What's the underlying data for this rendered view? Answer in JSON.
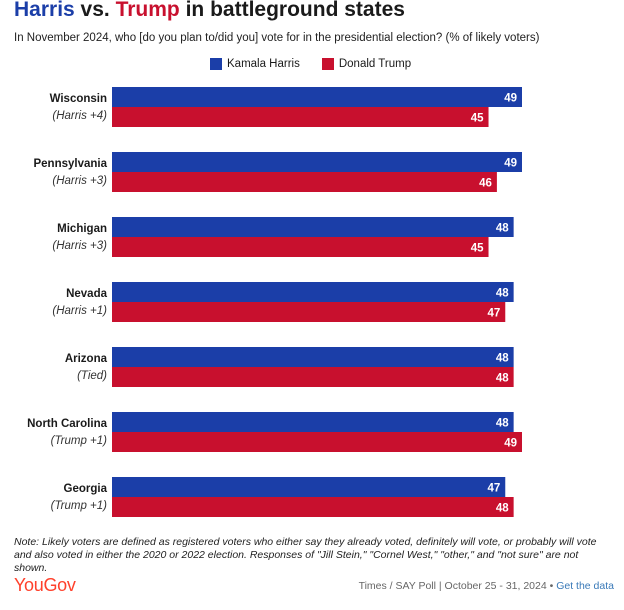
{
  "title": {
    "harris": "Harris",
    "vs": " vs. ",
    "trump": "Trump",
    "rest": " in battleground states"
  },
  "subtitle": "In November 2024, who [do you plan to/did you] vote for in the presidential election? (% of likely voters)",
  "colors": {
    "harris": "#1b3ea8",
    "trump": "#c8102e"
  },
  "chart_data": {
    "type": "bar",
    "orientation": "horizontal",
    "title": "Harris vs. Trump in battleground states",
    "categories": [
      "Wisconsin",
      "Pennsylvania",
      "Michigan",
      "Nevada",
      "Arizona",
      "North Carolina",
      "Georgia"
    ],
    "sublabels": [
      "(Harris +4)",
      "(Harris +3)",
      "(Harris +3)",
      "(Harris +1)",
      "(Tied)",
      "(Trump +1)",
      "(Trump +1)"
    ],
    "series": [
      {
        "name": "Kamala Harris",
        "values": [
          49,
          49,
          48,
          48,
          48,
          48,
          47
        ]
      },
      {
        "name": "Donald Trump",
        "values": [
          45,
          46,
          45,
          47,
          48,
          49,
          48
        ]
      }
    ],
    "xlim": [
      0,
      49
    ],
    "legend": "top-center",
    "grid": false,
    "unit": "% of likely voters"
  },
  "note": "Note: Likely voters are defined as registered voters who either say they already voted, definitely will vote, or probably will vote and also voted in either the 2020 or 2022 election. Responses of \"Jill Stein,\" \"Cornel West,\" \"other,\" and \"not sure\" are not shown.",
  "brand": "YouGov",
  "source": {
    "text": "Times / SAY Poll | October 25 - 31, 2024",
    "separator": " • ",
    "link": "Get the data"
  }
}
